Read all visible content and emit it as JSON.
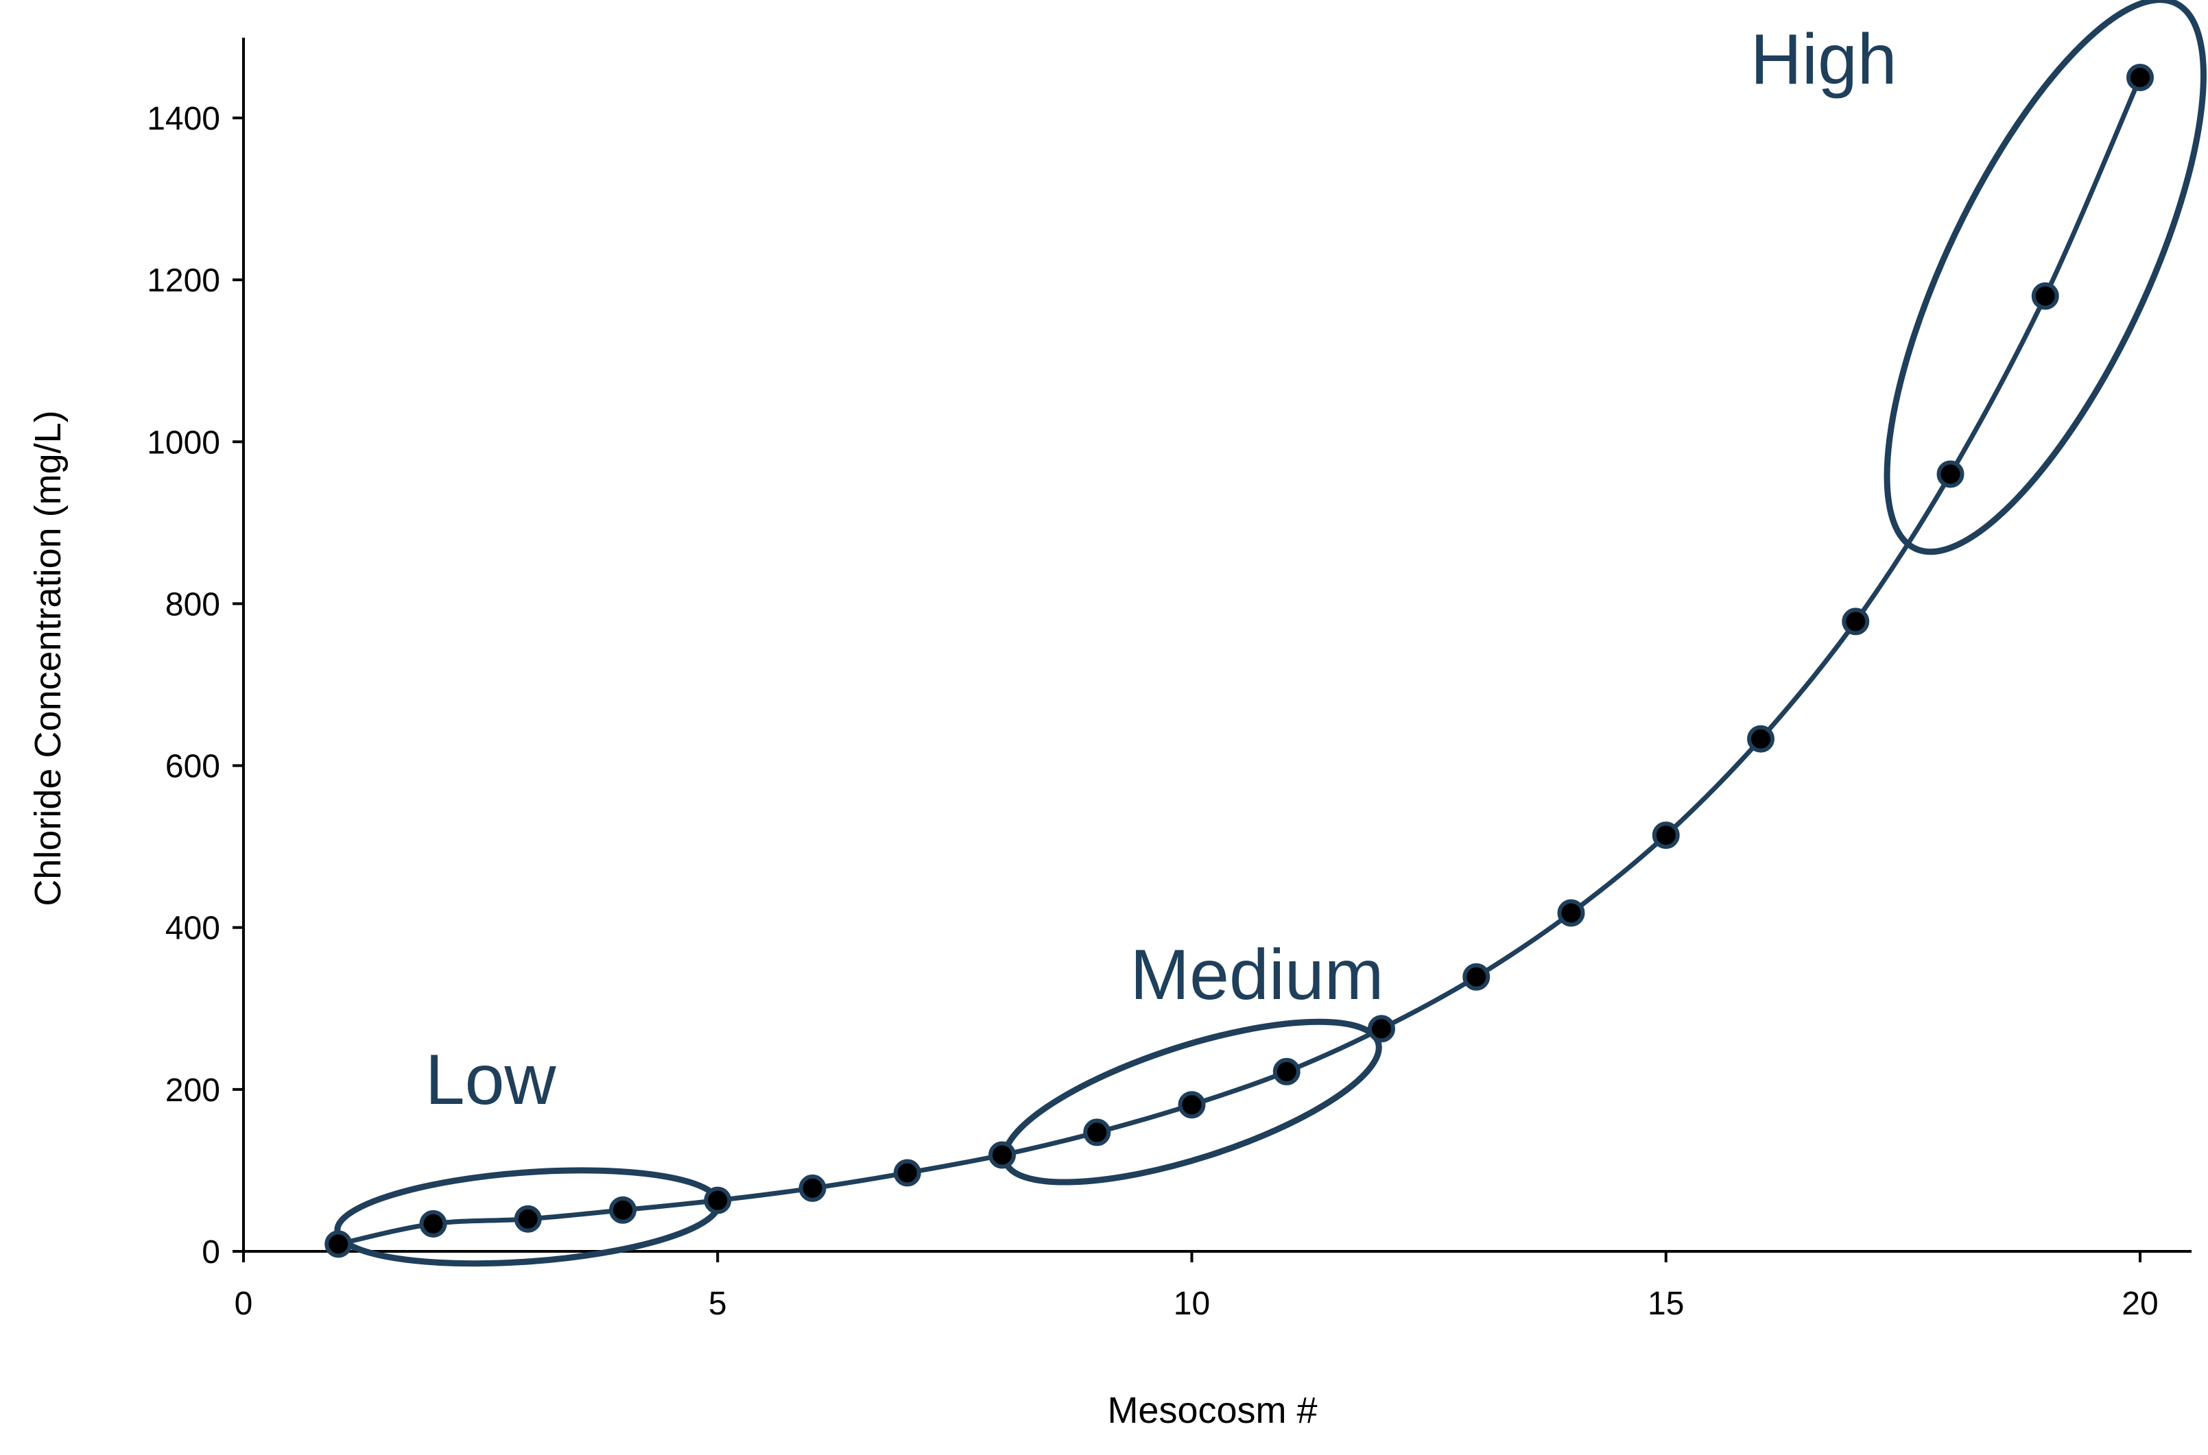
{
  "chart_data": {
    "type": "line",
    "title": "",
    "xlabel": "Mesocosm #",
    "ylabel": "Chloride Concentration (mg/L)",
    "xlim": [
      0,
      20.5
    ],
    "ylim": [
      0,
      1500
    ],
    "x_ticks": [
      0,
      5,
      10,
      15,
      20
    ],
    "y_ticks": [
      0,
      200,
      400,
      600,
      800,
      1000,
      1200,
      1400
    ],
    "grid": false,
    "legend": "none",
    "line_color": "#1f3f5b",
    "marker_color": "#000000",
    "series": [
      {
        "x": [
          1,
          2,
          3,
          4,
          5,
          6,
          7,
          8,
          9,
          10,
          11,
          12,
          13,
          14,
          15,
          16,
          17,
          18,
          19,
          20
        ],
        "values": [
          9,
          34,
          40,
          51,
          63,
          78,
          97,
          119,
          147,
          181,
          222,
          275,
          339,
          418,
          514,
          633,
          778,
          960,
          1180,
          1450
        ]
      }
    ],
    "annotations": [
      {
        "label": "Low",
        "members": [
          2,
          3,
          4
        ]
      },
      {
        "label": "Medium",
        "members": [
          9,
          10,
          11
        ]
      },
      {
        "label": "High",
        "members": [
          18,
          19,
          20
        ]
      }
    ]
  }
}
